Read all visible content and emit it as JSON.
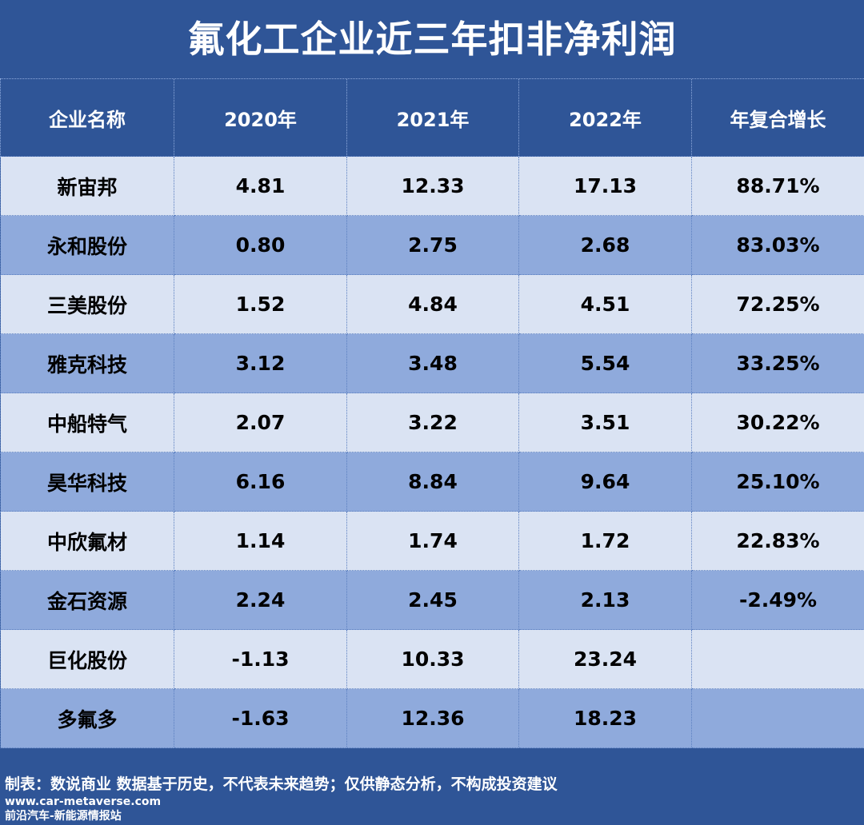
{
  "title": "氟化工企业近三年扣非净利润",
  "table": {
    "headers": [
      "企业名称",
      "2020年",
      "2021年",
      "2022年",
      "年复合增长"
    ],
    "rows": [
      [
        "新宙邦",
        "4.81",
        "12.33",
        "17.13",
        "88.71%"
      ],
      [
        "永和股份",
        "0.80",
        "2.75",
        "2.68",
        "83.03%"
      ],
      [
        "三美股份",
        "1.52",
        "4.84",
        "4.51",
        "72.25%"
      ],
      [
        "雅克科技",
        "3.12",
        "3.48",
        "5.54",
        "33.25%"
      ],
      [
        "中船特气",
        "2.07",
        "3.22",
        "3.51",
        "30.22%"
      ],
      [
        "昊华科技",
        "6.16",
        "8.84",
        "9.64",
        "25.10%"
      ],
      [
        "中欣氟材",
        "1.14",
        "1.74",
        "1.72",
        "22.83%"
      ],
      [
        "金石资源",
        "2.24",
        "2.45",
        "2.13",
        "-2.49%"
      ],
      [
        "巨化股份",
        "-1.13",
        "10.33",
        "23.24",
        ""
      ],
      [
        "多氟多",
        "-1.63",
        "12.36",
        "18.23",
        ""
      ]
    ]
  },
  "footer": {
    "note": "制表：数说商业 数据基于历史，不代表未来趋势；仅供静态分析，不构成投资建议",
    "url": "www.car-metaverse.com",
    "site": "前沿汽车-新能源情报站"
  },
  "colors": {
    "background": "#2f5597",
    "row_light": "#dae3f3",
    "row_dark": "#8faadc"
  }
}
